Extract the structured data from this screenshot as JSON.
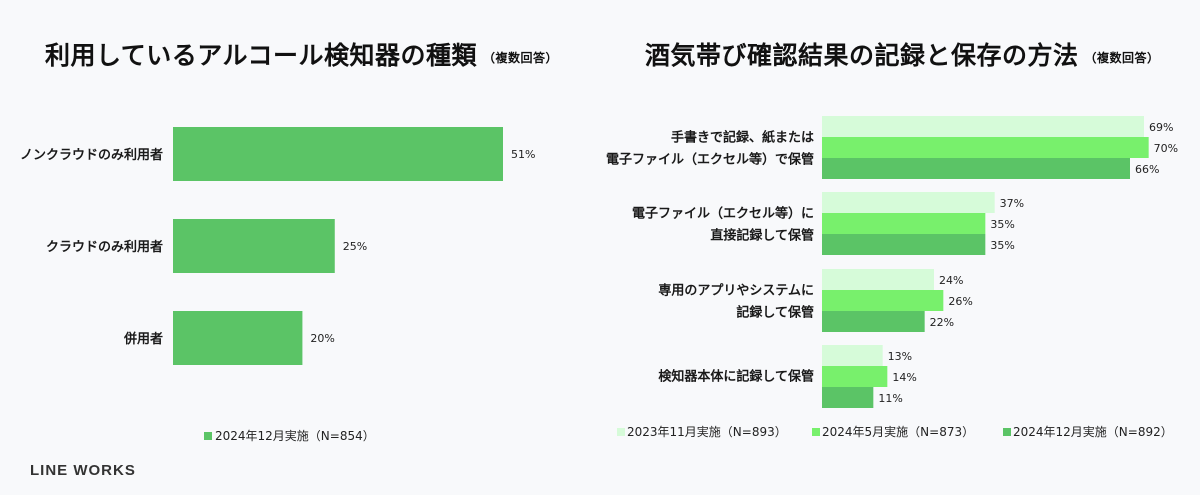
{
  "brand": "LINE WORKS",
  "colors": {
    "s2023_11": "#d6fbd9",
    "s2024_05": "#78f06c",
    "s2024_12": "#5bc466"
  },
  "chart_data": [
    {
      "type": "bar",
      "orientation": "horizontal",
      "title": "利用しているアルコール検知器の種類",
      "title_note": "（複数回答）",
      "categories": [
        "ノンクラウドのみ利用者",
        "クラウドのみ利用者",
        "併用者"
      ],
      "series": [
        {
          "name": "2024年12月実施（N=854）",
          "values": [
            51,
            25,
            20
          ],
          "color": "#5bc466"
        }
      ],
      "value_suffix": "%",
      "xlim": [
        0,
        100
      ],
      "legend_position": "bottom",
      "grid": false
    },
    {
      "type": "bar",
      "orientation": "horizontal",
      "title": "酒気帯び確認結果の記録と保存の方法",
      "title_note": "（複数回答）",
      "categories": [
        [
          "手書きで記録、紙または",
          "電子ファイル（エクセル等）で保管"
        ],
        [
          "電子ファイル（エクセル等）に",
          "直接記録して保管"
        ],
        [
          "専用のアプリやシステムに",
          "記録して保管"
        ],
        [
          "検知器本体に記録して保管"
        ]
      ],
      "series": [
        {
          "name": "2023年11月実施（N=893）",
          "values": [
            69,
            37,
            24,
            13
          ],
          "color": "#d6fbd9"
        },
        {
          "name": "2024年5月実施（N=873）",
          "values": [
            70,
            35,
            26,
            14
          ],
          "color": "#78f06c"
        },
        {
          "name": "2024年12月実施（N=892）",
          "values": [
            66,
            35,
            22,
            11
          ],
          "color": "#5bc466"
        }
      ],
      "value_suffix": "%",
      "xlim": [
        0,
        100
      ],
      "legend_position": "bottom",
      "grid": false
    }
  ]
}
